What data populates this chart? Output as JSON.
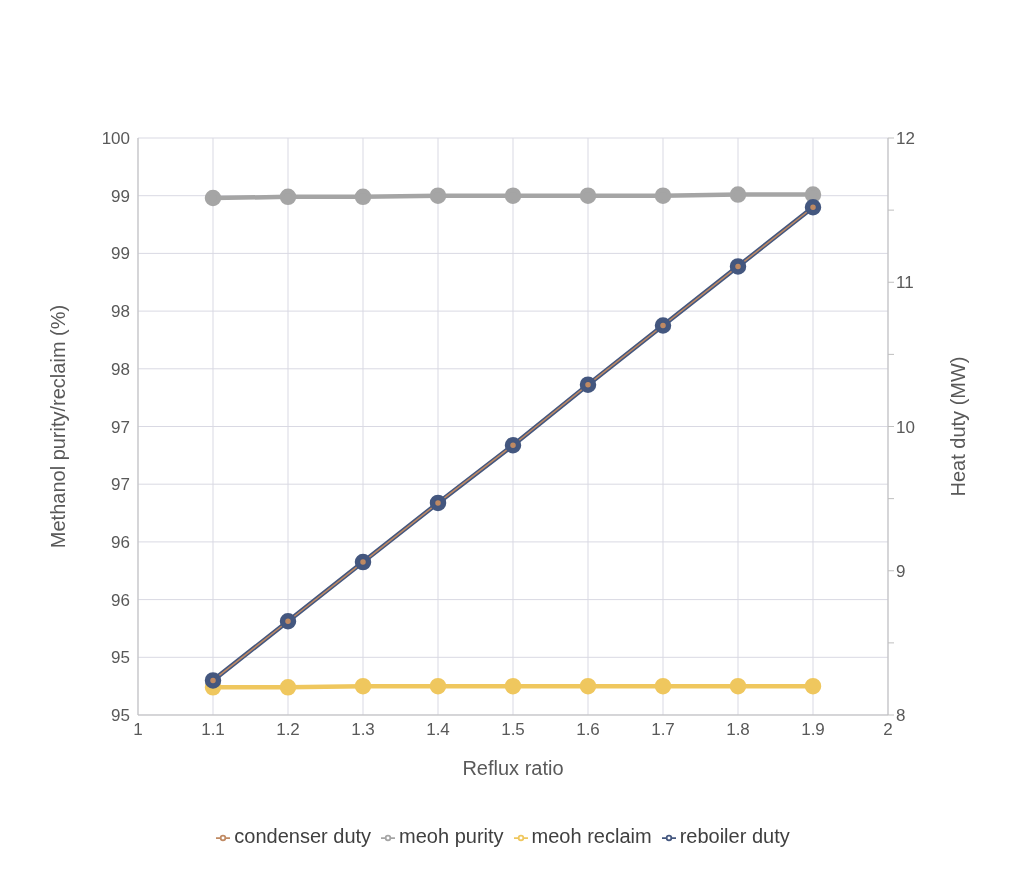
{
  "chart_data": {
    "type": "line",
    "xlabel": "Reflux ratio",
    "ylabel": "Methanol purity/reclaim (%)",
    "y2label": "Heat duty (MW)",
    "x": [
      1.1,
      1.2,
      1.3,
      1.4,
      1.5,
      1.6,
      1.7,
      1.8,
      1.9
    ],
    "series": [
      {
        "name": "meoh purity",
        "color": "#a5a5a5",
        "marker": "circle",
        "values": [
          99.48,
          99.49,
          99.49,
          99.5,
          99.5,
          99.5,
          99.5,
          99.51,
          99.51
        ]
      },
      {
        "name": "meoh reclaim",
        "color": "#efc75e",
        "marker": "circle",
        "values": [
          95.24,
          95.24,
          95.25,
          95.25,
          95.25,
          95.25,
          95.25,
          95.25,
          95.25
        ]
      },
      {
        "name": "reboiler duty",
        "color": "#44577f",
        "marker": "circle",
        "axis": "y2",
        "values": [
          8.24,
          8.65,
          9.06,
          9.47,
          9.87,
          10.29,
          10.7,
          11.11,
          11.52
        ]
      },
      {
        "name": "condenser duty",
        "color": "#c08a63",
        "marker": "circle",
        "axis": "y2",
        "values": [
          8.24,
          8.65,
          9.06,
          9.47,
          9.87,
          10.29,
          10.7,
          11.11,
          11.52
        ]
      }
    ],
    "xlim": [
      1,
      2
    ],
    "xticks": [
      1,
      1.1,
      1.2,
      1.3,
      1.4,
      1.5,
      1.6,
      1.7,
      1.8,
      1.9,
      2
    ],
    "ylim": [
      95,
      100
    ],
    "yticks": [
      95,
      {
        "value": 95.5,
        "label": "95"
      },
      96,
      {
        "value": 96.5,
        "label": "96"
      },
      97,
      {
        "value": 97.5,
        "label": "97"
      },
      98,
      {
        "value": 98.5,
        "label": "98"
      },
      99,
      {
        "value": 99.5,
        "label": "99"
      },
      100
    ],
    "y2lim": [
      8,
      12
    ],
    "y2ticks": [
      8,
      {
        "value": 8.5,
        "label": null
      },
      9,
      {
        "value": 9.5,
        "label": null
      },
      10,
      {
        "value": 10.5,
        "label": null
      },
      11,
      {
        "value": 11.5,
        "label": null
      },
      12
    ],
    "grid": true,
    "legend": "bottom",
    "line_style": "solid"
  }
}
